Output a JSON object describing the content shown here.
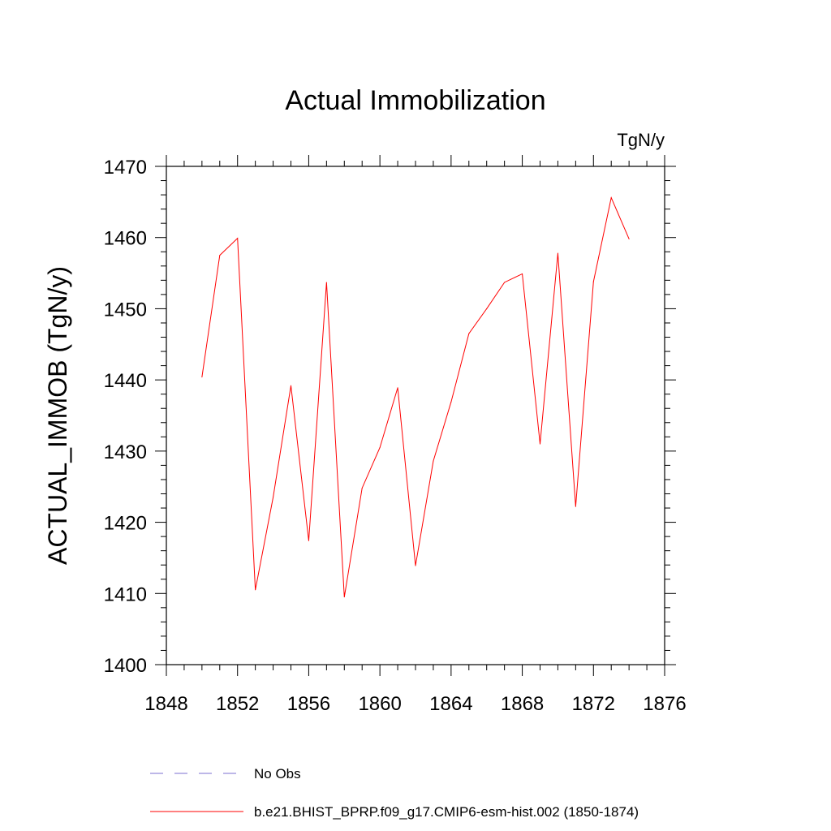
{
  "chart_data": {
    "type": "line",
    "title": "Actual Immobilization",
    "units": "TgN/y",
    "ylabel": "ACTUAL_IMMOB  (TgN/y)",
    "xlabel": "",
    "xlim": [
      1848,
      1876
    ],
    "ylim": [
      1400,
      1470
    ],
    "x_ticks": [
      1848,
      1852,
      1856,
      1860,
      1864,
      1868,
      1872,
      1876
    ],
    "y_ticks": [
      1400,
      1410,
      1420,
      1430,
      1440,
      1450,
      1460,
      1470
    ],
    "grid": false,
    "legend_position": "bottom",
    "legend": [
      {
        "label": "No Obs",
        "style": "dashed",
        "color": "#7b6fd0"
      },
      {
        "label": "b.e21.BHIST_BPRP.f09_g17.CMIP6-esm-hist.002 (1850-1874)",
        "style": "solid",
        "color": "#ff0000"
      }
    ],
    "series": [
      {
        "name": "b.e21.BHIST_BPRP.f09_g17.CMIP6-esm-hist.002 (1850-1874)",
        "color": "#ff0000",
        "x": [
          1850,
          1851,
          1852,
          1853,
          1854,
          1855,
          1856,
          1857,
          1858,
          1859,
          1860,
          1861,
          1862,
          1863,
          1864,
          1865,
          1866,
          1867,
          1868,
          1869,
          1870,
          1871,
          1872,
          1873,
          1874
        ],
        "values": [
          1440.4,
          1457.5,
          1459.9,
          1410.5,
          1423.5,
          1439.2,
          1417.4,
          1453.7,
          1409.5,
          1424.8,
          1430.5,
          1438.9,
          1413.9,
          1428.6,
          1436.9,
          1446.5,
          1450.0,
          1453.7,
          1454.9,
          1431.0,
          1457.8,
          1422.2,
          1453.8,
          1465.6,
          1459.8
        ]
      }
    ]
  }
}
